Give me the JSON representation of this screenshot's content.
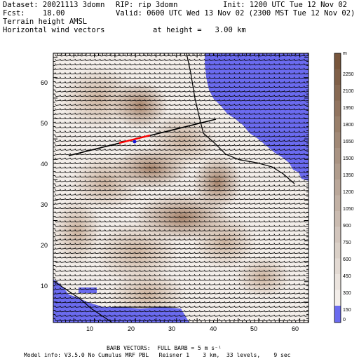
{
  "header": {
    "dataset": "Dataset: 20021113 3domn",
    "rip": "RIP: rip 3domn",
    "init": "Init: 1200 UTC Tue 12 Nov 02",
    "fcst": "Fcst:    18.00",
    "valid": "Valid: 0600 UTC Wed 13 Nov 02 (2300 MST Tue 12 Nov 02)",
    "field1": "Terrain height AMSL",
    "field2": "Horizontal wind vectors",
    "height": "at height =   3.00 km"
  },
  "map": {
    "x_ticks": [
      "10",
      "20",
      "30",
      "40",
      "50",
      "60"
    ],
    "y_ticks": [
      "10",
      "20",
      "30",
      "40",
      "50",
      "60"
    ],
    "colorbar_unit": "m",
    "colorbar_labels": [
      "2250",
      "2100",
      "1950",
      "1800",
      "1650",
      "1500",
      "1350",
      "1200",
      "1050",
      "900",
      "750",
      "600",
      "450",
      "300",
      "150",
      "0"
    ],
    "colors": {
      "water": "#6b6bef",
      "terrain_low": "#f3eeea",
      "terrain_high": "#9c7458",
      "cross_section_line": "#000000",
      "highlight_segment": "#ff0000"
    }
  },
  "footer": {
    "barb": "BARB VECTORS:  FULL BARB = 5 m s⁻¹",
    "model": "Model info: V3.5.0 No Cumulus MRF PBL   Reisner 1    3 km,  33 levels,    9 sec"
  }
}
